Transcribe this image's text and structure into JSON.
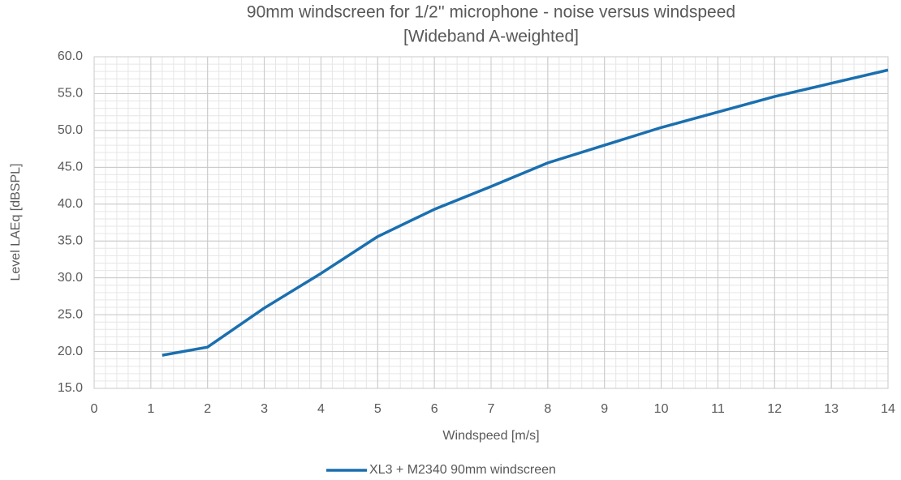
{
  "chart_data": {
    "type": "line",
    "title": "90mm windscreen for 1/2'' microphone - noise versus windspeed",
    "subtitle": "[Wideband A-weighted]",
    "x_label": "Windspeed [m/s]",
    "y_label": "Level LAEq [dBSPL]",
    "x": [
      1.2,
      2,
      3,
      4,
      5,
      6,
      7,
      8,
      9,
      10,
      11,
      12,
      13,
      14
    ],
    "series": [
      {
        "name": "XL3 + M2340 90mm windscreen",
        "color": "#1a6faf",
        "values": [
          19.5,
          20.6,
          25.9,
          30.6,
          35.6,
          39.3,
          42.4,
          45.6,
          48.0,
          50.4,
          52.5,
          54.6,
          56.4,
          58.2
        ]
      }
    ],
    "xlim": [
      0,
      14
    ],
    "xticks": [
      0,
      1,
      2,
      3,
      4,
      5,
      6,
      7,
      8,
      9,
      10,
      11,
      12,
      13,
      14
    ],
    "ylim": [
      15,
      60
    ],
    "yticks": [
      {
        "value": 15,
        "label": "15.0"
      },
      {
        "value": 20,
        "label": "20.0"
      },
      {
        "value": 25,
        "label": "25.0"
      },
      {
        "value": 30,
        "label": "30.0"
      },
      {
        "value": 35,
        "label": "35.0"
      },
      {
        "value": 40,
        "label": "40.0"
      },
      {
        "value": 45,
        "label": "45.0"
      },
      {
        "value": 50,
        "label": "50.0"
      },
      {
        "value": 55,
        "label": "55.0"
      },
      {
        "value": 60,
        "label": "60.0"
      }
    ],
    "grid": true,
    "minor_grid": true,
    "legend": "bottom"
  }
}
